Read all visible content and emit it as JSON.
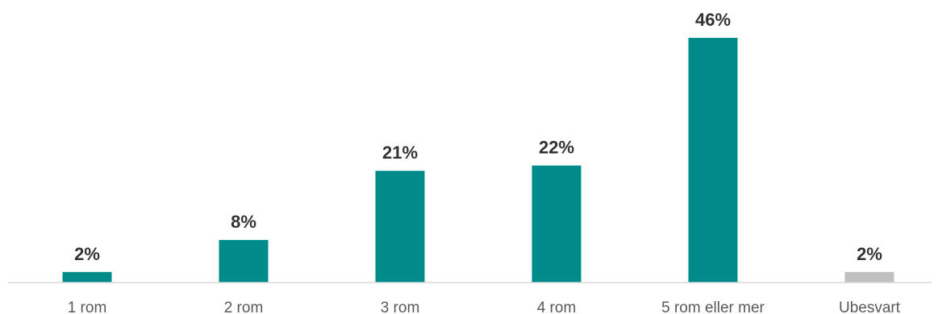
{
  "chart_data": {
    "type": "bar",
    "title": "",
    "xlabel": "",
    "ylabel": "",
    "categories": [
      "1 rom",
      "2 rom",
      "3 rom",
      "4 rom",
      "5 rom eller mer",
      "Ubesvart"
    ],
    "values": [
      2,
      8,
      21,
      22,
      46,
      2
    ],
    "value_labels": [
      "2%",
      "8%",
      "21%",
      "22%",
      "46%",
      "2%"
    ],
    "ylim": [
      0,
      50
    ],
    "grid": false,
    "legend": "none",
    "colors": {
      "bar": "#008b8b",
      "bar_unanswered": "#bfbfbf",
      "axis": "#d9d9d9"
    }
  }
}
